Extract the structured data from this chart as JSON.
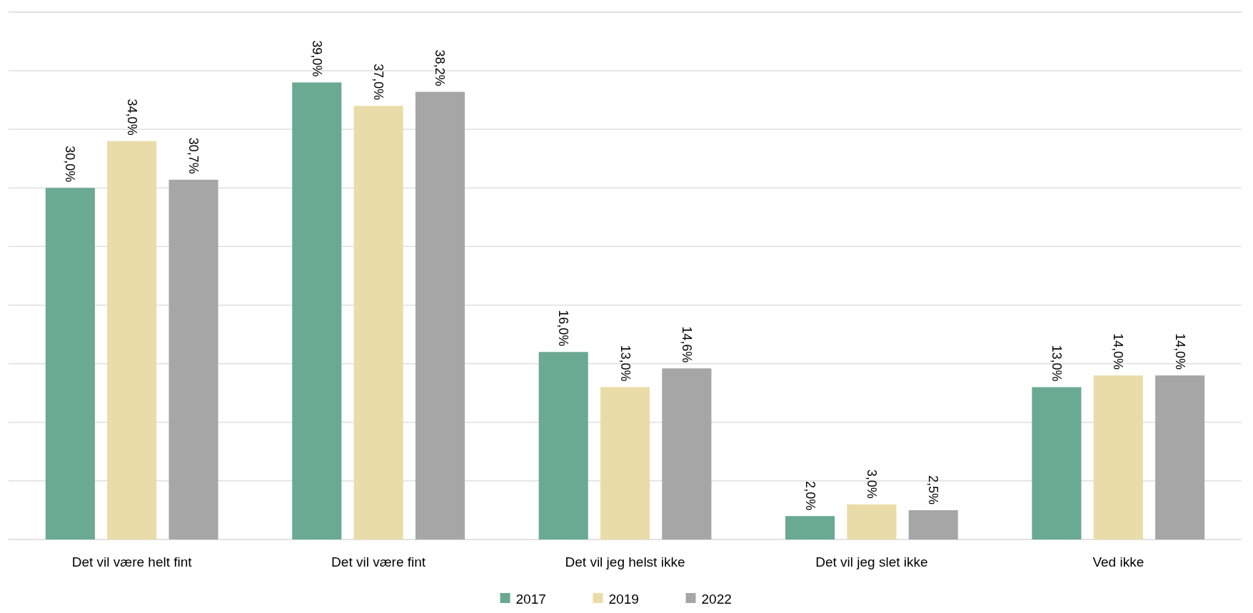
{
  "chart_data": {
    "type": "bar",
    "categories": [
      "Det vil være helt fint",
      "Det vil være fint",
      "Det vil jeg helst ikke",
      "Det vil jeg slet ikke",
      "Ved ikke"
    ],
    "series": [
      {
        "name": "2017",
        "color": "#6aa992",
        "values": [
          30.0,
          39.0,
          16.0,
          2.0,
          13.0
        ],
        "value_labels": [
          "30,0%",
          "39,0%",
          "16,0%",
          "2,0%",
          "13,0%"
        ]
      },
      {
        "name": "2019",
        "color": "#e9dca8",
        "values": [
          34.0,
          37.0,
          13.0,
          3.0,
          14.0
        ],
        "value_labels": [
          "34,0%",
          "37,0%",
          "13,0%",
          "3,0%",
          "14,0%"
        ]
      },
      {
        "name": "2022",
        "color": "#a6a6a6",
        "values": [
          30.7,
          38.2,
          14.6,
          2.5,
          14.0
        ],
        "value_labels": [
          "30,7%",
          "38,2%",
          "14,6%",
          "2,5%",
          "14,0%"
        ]
      }
    ],
    "ylim": [
      0,
      45
    ],
    "yticks": [
      {
        "value": 0,
        "label": null
      },
      {
        "value": 5,
        "label": null
      },
      {
        "value": 10,
        "label": null
      },
      {
        "value": 15,
        "label": null
      },
      {
        "value": 20,
        "label": null
      },
      {
        "value": 25,
        "label": null
      },
      {
        "value": 30,
        "label": null
      },
      {
        "value": 35,
        "label": null
      },
      {
        "value": 40,
        "label": null
      },
      {
        "value": 45,
        "label": null
      }
    ],
    "tick_labels": "x",
    "grid": "y",
    "legend": "bottom"
  }
}
